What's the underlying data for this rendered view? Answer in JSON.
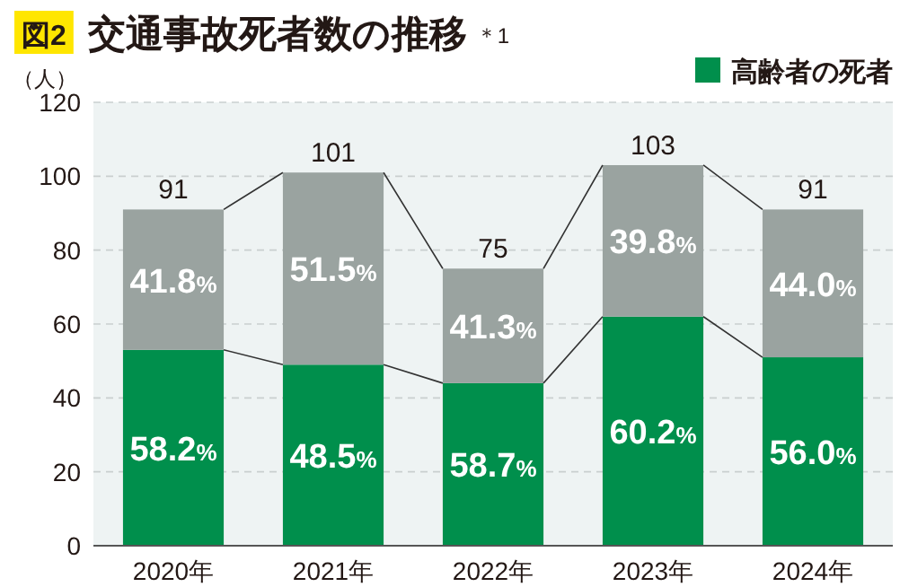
{
  "chart_data": {
    "type": "bar",
    "title": "交通事故死者数の推移",
    "annotations": [
      "図2",
      "＊1",
      "58.2%",
      "48.5%",
      "58.7%",
      "60.2%",
      "56.0%",
      "41.8%",
      "51.5%",
      "41.3%",
      "39.8%",
      "44.0%"
    ],
    "ylabel": "（人）",
    "categories": [
      "2020年",
      "2021年",
      "2022年",
      "2023年",
      "2024年"
    ],
    "stacked": true,
    "series": [
      {
        "name": "高齢者の死者",
        "color": "#008f4c",
        "values": [
          53,
          49,
          44,
          62,
          51
        ]
      },
      {
        "color": "#9aa3a0",
        "values": [
          38,
          52,
          31,
          41,
          40
        ]
      }
    ],
    "totals": [
      "91",
      "101",
      "75",
      "103",
      "91"
    ],
    "ylim": [
      0,
      120
    ],
    "yticks": [
      0,
      20,
      40,
      60,
      80,
      100,
      120
    ],
    "grid": "y",
    "legend": "top right"
  }
}
